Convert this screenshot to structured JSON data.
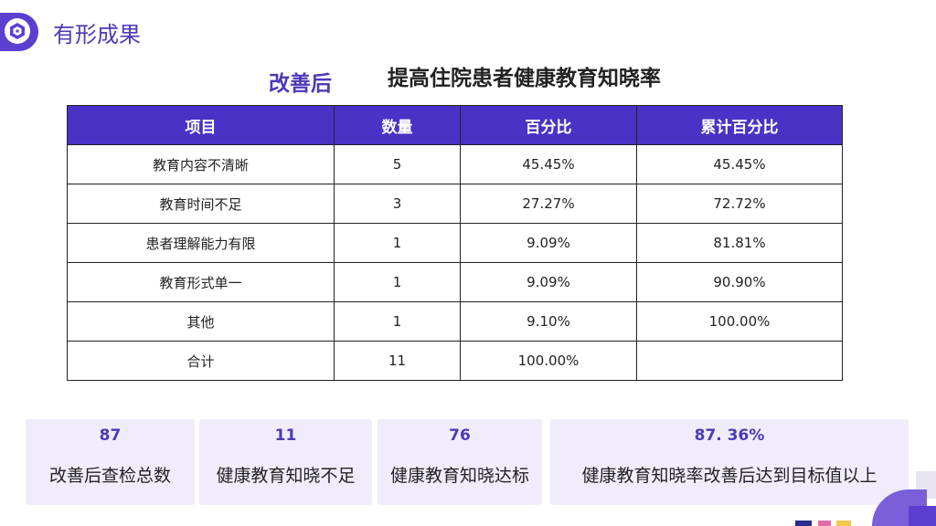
{
  "header": {
    "title": "有形成果",
    "logo_icon": "hexagon-logo-icon"
  },
  "subtitle": {
    "label": "改善后",
    "text": "提高住院患者健康教育知晓率"
  },
  "table": {
    "headers": [
      "项目",
      "数量",
      "百分比",
      "累计百分比"
    ],
    "rows": [
      [
        "教育内容不清晰",
        "5",
        "45.45%",
        "45.45%"
      ],
      [
        "教育时间不足",
        "3",
        "27.27%",
        "72.72%"
      ],
      [
        "患者理解能力有限",
        "1",
        "9.09%",
        "81.81%"
      ],
      [
        "教育形式单一",
        "1",
        "9.09%",
        "90.90%"
      ],
      [
        "其他",
        "1",
        "9.10%",
        "100.00%"
      ],
      [
        "合计",
        "11",
        "100.00%",
        ""
      ]
    ]
  },
  "stats": [
    {
      "value": "87",
      "label": "改善后查检总数"
    },
    {
      "value": "11",
      "label": "健康教育知晓不足"
    },
    {
      "value": "76",
      "label": "健康教育知晓达标"
    },
    {
      "value": "87. 36%",
      "label": "健康教育知晓率改善后达到目标值以上"
    }
  ],
  "colors": {
    "accent": "#4a32c6",
    "title": "#4b3ab8",
    "card_bg": "#f1ecfb"
  }
}
